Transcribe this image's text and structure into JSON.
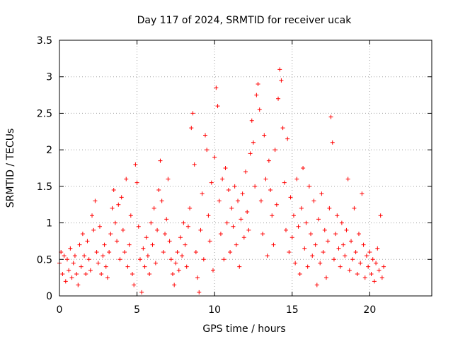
{
  "chart_data": {
    "type": "scatter",
    "title": "Day 117 of 2024, SRMTID for receiver ucak",
    "xlabel": "GPS time / hours",
    "ylabel": "SRMTID / TECUs",
    "xlim": [
      0,
      24
    ],
    "ylim": [
      0,
      3.5
    ],
    "xticks": [
      0,
      5,
      10,
      15,
      20
    ],
    "yticks": [
      0,
      0.5,
      1,
      1.5,
      2,
      2.5,
      3,
      3.5
    ],
    "xtick_labels": [
      "0",
      "5",
      "10",
      "15",
      "20"
    ],
    "ytick_labels": [
      "0",
      "0.5",
      "1",
      "1.5",
      "2",
      "2.5",
      "3",
      "3.5"
    ],
    "grid": true,
    "marker": "+",
    "series": [
      {
        "name": "SRMTID",
        "color": "#ff0000",
        "points": [
          [
            0.0,
            0.45
          ],
          [
            0.1,
            0.6
          ],
          [
            0.2,
            0.3
          ],
          [
            0.3,
            0.55
          ],
          [
            0.4,
            0.2
          ],
          [
            0.5,
            0.5
          ],
          [
            0.6,
            0.35
          ],
          [
            0.7,
            0.65
          ],
          [
            0.8,
            0.25
          ],
          [
            0.9,
            0.45
          ],
          [
            1.0,
            0.55
          ],
          [
            1.1,
            0.3
          ],
          [
            1.2,
            0.15
          ],
          [
            1.3,
            0.7
          ],
          [
            1.4,
            0.4
          ],
          [
            1.5,
            0.85
          ],
          [
            1.6,
            0.55
          ],
          [
            1.7,
            0.3
          ],
          [
            1.8,
            0.75
          ],
          [
            1.9,
            0.5
          ],
          [
            2.0,
            0.35
          ],
          [
            2.1,
            1.1
          ],
          [
            2.2,
            0.9
          ],
          [
            2.3,
            1.3
          ],
          [
            2.4,
            0.6
          ],
          [
            2.5,
            0.45
          ],
          [
            2.6,
            0.95
          ],
          [
            2.7,
            0.3
          ],
          [
            2.8,
            0.55
          ],
          [
            2.9,
            0.7
          ],
          [
            3.0,
            0.4
          ],
          [
            3.1,
            0.25
          ],
          [
            3.2,
            0.6
          ],
          [
            3.3,
            0.85
          ],
          [
            3.4,
            1.2
          ],
          [
            3.5,
            1.45
          ],
          [
            3.6,
            1.0
          ],
          [
            3.7,
            0.75
          ],
          [
            3.8,
            1.25
          ],
          [
            3.9,
            0.5
          ],
          [
            4.0,
            1.35
          ],
          [
            4.1,
            0.9
          ],
          [
            4.2,
            0.6
          ],
          [
            4.3,
            1.6
          ],
          [
            4.4,
            0.4
          ],
          [
            4.5,
            0.7
          ],
          [
            4.6,
            1.1
          ],
          [
            4.7,
            0.3
          ],
          [
            4.8,
            0.15
          ],
          [
            4.9,
            1.8
          ],
          [
            5.0,
            1.55
          ],
          [
            5.1,
            0.95
          ],
          [
            5.2,
            0.5
          ],
          [
            5.3,
            0.05
          ],
          [
            5.4,
            0.65
          ],
          [
            5.5,
            0.4
          ],
          [
            5.6,
            0.8
          ],
          [
            5.7,
            0.55
          ],
          [
            5.8,
            0.3
          ],
          [
            5.9,
            1.0
          ],
          [
            6.0,
            0.7
          ],
          [
            6.1,
            1.2
          ],
          [
            6.2,
            0.45
          ],
          [
            6.3,
            0.9
          ],
          [
            6.4,
            1.45
          ],
          [
            6.5,
            1.85
          ],
          [
            6.6,
            1.3
          ],
          [
            6.7,
            0.6
          ],
          [
            6.8,
            0.85
          ],
          [
            6.9,
            1.05
          ],
          [
            7.0,
            1.6
          ],
          [
            7.1,
            0.75
          ],
          [
            7.2,
            0.5
          ],
          [
            7.3,
            0.3
          ],
          [
            7.4,
            0.15
          ],
          [
            7.5,
            0.45
          ],
          [
            7.6,
            0.6
          ],
          [
            7.7,
            0.35
          ],
          [
            7.8,
            0.8
          ],
          [
            7.9,
            0.55
          ],
          [
            8.0,
            1.0
          ],
          [
            8.1,
            0.7
          ],
          [
            8.2,
            0.4
          ],
          [
            8.3,
            0.95
          ],
          [
            8.4,
            1.2
          ],
          [
            8.5,
            2.3
          ],
          [
            8.6,
            2.5
          ],
          [
            8.7,
            1.8
          ],
          [
            8.8,
            0.6
          ],
          [
            8.9,
            0.25
          ],
          [
            9.0,
            0.05
          ],
          [
            9.1,
            0.9
          ],
          [
            9.2,
            1.4
          ],
          [
            9.3,
            0.5
          ],
          [
            9.4,
            2.2
          ],
          [
            9.5,
            2.0
          ],
          [
            9.6,
            1.1
          ],
          [
            9.7,
            0.75
          ],
          [
            9.8,
            1.55
          ],
          [
            9.9,
            0.35
          ],
          [
            10.0,
            1.9
          ],
          [
            10.1,
            2.85
          ],
          [
            10.2,
            2.6
          ],
          [
            10.3,
            1.3
          ],
          [
            10.4,
            0.85
          ],
          [
            10.5,
            1.6
          ],
          [
            10.6,
            0.5
          ],
          [
            10.7,
            1.75
          ],
          [
            10.8,
            1.0
          ],
          [
            10.9,
            1.45
          ],
          [
            11.0,
            0.6
          ],
          [
            11.1,
            1.2
          ],
          [
            11.2,
            0.95
          ],
          [
            11.3,
            1.5
          ],
          [
            11.4,
            0.7
          ],
          [
            11.5,
            1.3
          ],
          [
            11.6,
            0.4
          ],
          [
            11.7,
            1.05
          ],
          [
            11.8,
            1.4
          ],
          [
            11.9,
            0.8
          ],
          [
            12.0,
            1.7
          ],
          [
            12.1,
            1.15
          ],
          [
            12.2,
            0.9
          ],
          [
            12.3,
            1.95
          ],
          [
            12.4,
            2.4
          ],
          [
            12.5,
            2.1
          ],
          [
            12.6,
            1.5
          ],
          [
            12.7,
            2.75
          ],
          [
            12.8,
            2.9
          ],
          [
            12.9,
            2.55
          ],
          [
            13.0,
            1.3
          ],
          [
            13.1,
            0.85
          ],
          [
            13.2,
            2.2
          ],
          [
            13.3,
            1.6
          ],
          [
            13.4,
            0.55
          ],
          [
            13.5,
            1.85
          ],
          [
            13.6,
            1.45
          ],
          [
            13.7,
            1.1
          ],
          [
            13.8,
            0.7
          ],
          [
            13.9,
            2.0
          ],
          [
            14.0,
            1.25
          ],
          [
            14.1,
            2.7
          ],
          [
            14.2,
            3.1
          ],
          [
            14.3,
            2.95
          ],
          [
            14.4,
            2.3
          ],
          [
            14.5,
            1.55
          ],
          [
            14.6,
            0.9
          ],
          [
            14.7,
            2.15
          ],
          [
            14.8,
            0.6
          ],
          [
            14.9,
            1.35
          ],
          [
            15.0,
            0.8
          ],
          [
            15.1,
            1.1
          ],
          [
            15.2,
            0.45
          ],
          [
            15.3,
            1.6
          ],
          [
            15.4,
            0.95
          ],
          [
            15.5,
            0.3
          ],
          [
            15.6,
            1.2
          ],
          [
            15.7,
            1.75
          ],
          [
            15.8,
            0.65
          ],
          [
            15.9,
            1.0
          ],
          [
            16.0,
            0.4
          ],
          [
            16.1,
            1.5
          ],
          [
            16.2,
            0.85
          ],
          [
            16.3,
            0.55
          ],
          [
            16.4,
            1.3
          ],
          [
            16.5,
            0.7
          ],
          [
            16.6,
            0.15
          ],
          [
            16.7,
            1.05
          ],
          [
            16.8,
            0.45
          ],
          [
            16.9,
            1.4
          ],
          [
            17.0,
            0.6
          ],
          [
            17.1,
            0.9
          ],
          [
            17.2,
            0.25
          ],
          [
            17.3,
            0.75
          ],
          [
            17.4,
            1.2
          ],
          [
            17.5,
            2.45
          ],
          [
            17.6,
            2.1
          ],
          [
            17.7,
            0.5
          ],
          [
            17.8,
            0.85
          ],
          [
            17.9,
            1.1
          ],
          [
            18.0,
            0.65
          ],
          [
            18.1,
            0.4
          ],
          [
            18.2,
            1.0
          ],
          [
            18.3,
            0.7
          ],
          [
            18.4,
            0.55
          ],
          [
            18.5,
            0.9
          ],
          [
            18.6,
            1.6
          ],
          [
            18.7,
            0.35
          ],
          [
            18.8,
            0.75
          ],
          [
            18.9,
            0.5
          ],
          [
            19.0,
            1.2
          ],
          [
            19.1,
            0.6
          ],
          [
            19.2,
            0.3
          ],
          [
            19.3,
            0.85
          ],
          [
            19.4,
            0.45
          ],
          [
            19.5,
            1.4
          ],
          [
            19.6,
            0.7
          ],
          [
            19.7,
            0.25
          ],
          [
            19.8,
            0.55
          ],
          [
            19.9,
            0.4
          ],
          [
            20.0,
            0.6
          ],
          [
            20.1,
            0.3
          ],
          [
            20.2,
            0.5
          ],
          [
            20.3,
            0.2
          ],
          [
            20.4,
            0.45
          ],
          [
            20.5,
            0.65
          ],
          [
            20.6,
            0.35
          ],
          [
            20.7,
            1.1
          ],
          [
            20.8,
            0.25
          ],
          [
            20.9,
            0.4
          ]
        ]
      }
    ]
  }
}
